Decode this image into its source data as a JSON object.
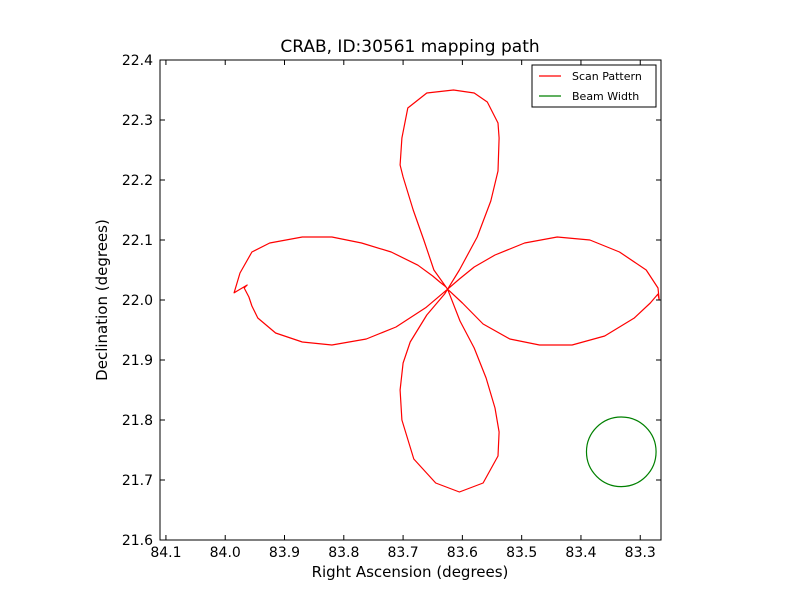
{
  "chart_data": {
    "type": "line",
    "title": "CRAB, ID:30561 mapping path",
    "xlabel": "Right Ascension (degrees)",
    "ylabel": "Declination (degrees)",
    "xlim": [
      84.11,
      83.265
    ],
    "ylim": [
      21.6,
      22.4
    ],
    "x_inverted": true,
    "xticks": [
      "84.1",
      "84.0",
      "83.9",
      "83.8",
      "83.7",
      "83.6",
      "83.5",
      "83.4",
      "83.3"
    ],
    "xtick_values": [
      84.1,
      84.0,
      83.9,
      83.8,
      83.7,
      83.6,
      83.5,
      83.4,
      83.3
    ],
    "yticks": [
      "21.6",
      "21.7",
      "21.8",
      "21.9",
      "22.0",
      "22.1",
      "22.2",
      "22.3",
      "22.4"
    ],
    "ytick_values": [
      21.6,
      21.7,
      21.8,
      21.9,
      22.0,
      22.1,
      22.2,
      22.3,
      22.4
    ],
    "grid": false,
    "legend_position": "top-right",
    "series": [
      {
        "name": "Scan Pattern",
        "color": "#ff0000",
        "x": [
          83.625,
          83.662,
          83.712,
          83.762,
          83.82,
          83.87,
          83.915,
          83.945,
          83.955,
          83.96,
          83.968,
          83.963,
          83.98,
          83.985,
          83.975,
          83.955,
          83.925,
          83.87,
          83.82,
          83.77,
          83.72,
          83.675,
          83.65,
          83.638,
          83.628,
          83.625,
          83.605,
          83.575,
          83.552,
          83.54,
          83.538,
          83.54,
          83.558,
          83.58,
          83.615,
          83.66,
          83.692,
          83.702,
          83.705,
          83.7,
          83.683,
          83.665,
          83.648,
          83.625,
          83.6,
          83.565,
          83.52,
          83.47,
          83.415,
          83.36,
          83.31,
          83.283,
          83.27,
          83.268,
          83.27,
          83.29,
          83.335,
          83.385,
          83.44,
          83.495,
          83.545,
          83.58,
          83.605,
          83.625,
          83.63,
          83.66,
          83.688,
          83.7,
          83.705,
          83.702,
          83.682,
          83.645,
          83.605,
          83.565,
          83.54,
          83.538,
          83.545,
          83.56,
          83.58,
          83.604,
          83.625
        ],
        "y": [
          22.018,
          21.987,
          21.955,
          21.935,
          21.925,
          21.93,
          21.945,
          21.97,
          21.99,
          22.005,
          22.02,
          22.025,
          22.015,
          22.012,
          22.045,
          22.08,
          22.095,
          22.105,
          22.105,
          22.095,
          22.08,
          22.058,
          22.04,
          22.03,
          22.022,
          22.018,
          22.05,
          22.105,
          22.165,
          22.215,
          22.27,
          22.295,
          22.33,
          22.345,
          22.35,
          22.345,
          22.32,
          22.27,
          22.225,
          22.205,
          22.15,
          22.1,
          22.05,
          22.018,
          21.995,
          21.96,
          21.935,
          21.925,
          21.925,
          21.94,
          21.97,
          21.995,
          22.01,
          22.0,
          22.02,
          22.05,
          22.08,
          22.1,
          22.105,
          22.095,
          22.075,
          22.055,
          22.035,
          22.018,
          22.01,
          21.975,
          21.93,
          21.895,
          21.85,
          21.8,
          21.735,
          21.695,
          21.68,
          21.695,
          21.74,
          21.78,
          21.82,
          21.87,
          21.92,
          21.965,
          22.018
        ]
      },
      {
        "name": "Beam Width",
        "color": "#008000",
        "shape": "circle",
        "center": [
          83.332,
          21.747
        ],
        "radius_dec": 0.058
      }
    ]
  }
}
